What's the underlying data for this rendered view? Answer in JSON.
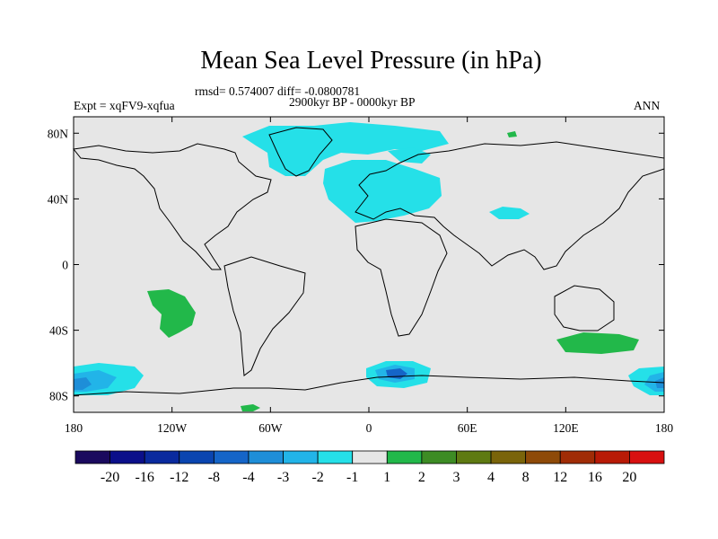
{
  "title": "Mean Sea Level Pressure (in hPa)",
  "stats": "rmsd= 0.574007 diff= -0.0800781",
  "period": "2900kyr BP - 0000kyr BP",
  "experiment": "Expt = xqFV9-xqfua",
  "season": "ANN",
  "y_ticks": [
    "80N",
    "40N",
    "0",
    "40S",
    "80S"
  ],
  "x_ticks": [
    "180",
    "120W",
    "60W",
    "0",
    "60E",
    "120E",
    "180"
  ],
  "colorbar": {
    "labels": [
      "-20",
      "-16",
      "-12",
      "-8",
      "-4",
      "-3",
      "-2",
      "-1",
      "1",
      "2",
      "3",
      "4",
      "8",
      "12",
      "16",
      "20"
    ],
    "colors": [
      "#1a0a5e",
      "#0b0f8a",
      "#0a2a9e",
      "#0a45b0",
      "#1565c8",
      "#1e8ed8",
      "#22b4e8",
      "#25e0e8",
      "#e6e6e6",
      "#22b84a",
      "#3d8c24",
      "#5e7a12",
      "#7a640a",
      "#8e4a08",
      "#a02c06",
      "#b81a06",
      "#d81010"
    ]
  },
  "colors": {
    "background": "#e6e6e6",
    "low_light": "#25e0e8",
    "low_mid": "#22b4e8",
    "low_deep": "#1e8ed8",
    "low_deeper": "#1565c8",
    "high_light": "#22b84a",
    "coast": "#000000"
  }
}
